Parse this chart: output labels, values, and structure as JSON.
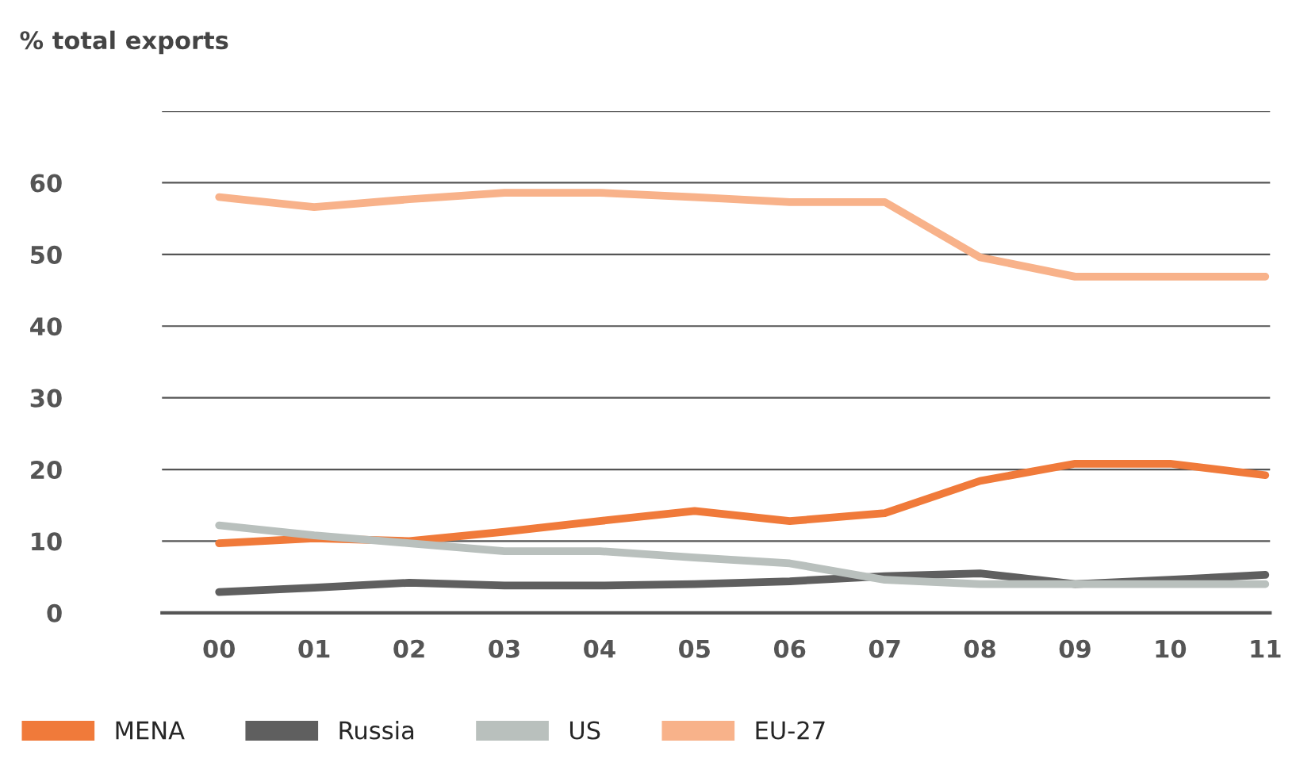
{
  "chart_data": {
    "type": "line",
    "ylabel": "% total exports",
    "categories": [
      "00",
      "01",
      "02",
      "03",
      "04",
      "05",
      "06",
      "07",
      "08",
      "09",
      "10",
      "11"
    ],
    "series": [
      {
        "name": "MENA",
        "color": "#f07a3a",
        "values": [
          9.7,
          10.4,
          10,
          11.3,
          12.8,
          14.2,
          12.8,
          13.9,
          18.4,
          20.8,
          20.8,
          19.2
        ]
      },
      {
        "name": "Russia",
        "color": "#5f5f5f",
        "values": [
          2.9,
          3.5,
          4.2,
          3.8,
          3.8,
          4,
          4.4,
          5.1,
          5.5,
          4,
          4.6,
          5.3
        ]
      },
      {
        "name": "US",
        "color": "#b9c0bd",
        "values": [
          12.2,
          10.8,
          9.7,
          8.6,
          8.6,
          7.7,
          6.9,
          4.6,
          4,
          4,
          4,
          4
        ]
      },
      {
        "name": "EU-27",
        "color": "#f8b28a",
        "values": [
          58,
          56.6,
          57.7,
          58.6,
          58.6,
          58,
          57.3,
          57.3,
          49.6,
          46.9,
          46.9,
          46.9
        ]
      }
    ],
    "ylim": [
      0,
      70
    ],
    "yticks": [
      0,
      10,
      20,
      30,
      40,
      50,
      60,
      {
        "value": 70,
        "label": null
      }
    ],
    "grid": "y",
    "legend": "bottom left",
    "marker": "none",
    "line_style": "solid"
  }
}
